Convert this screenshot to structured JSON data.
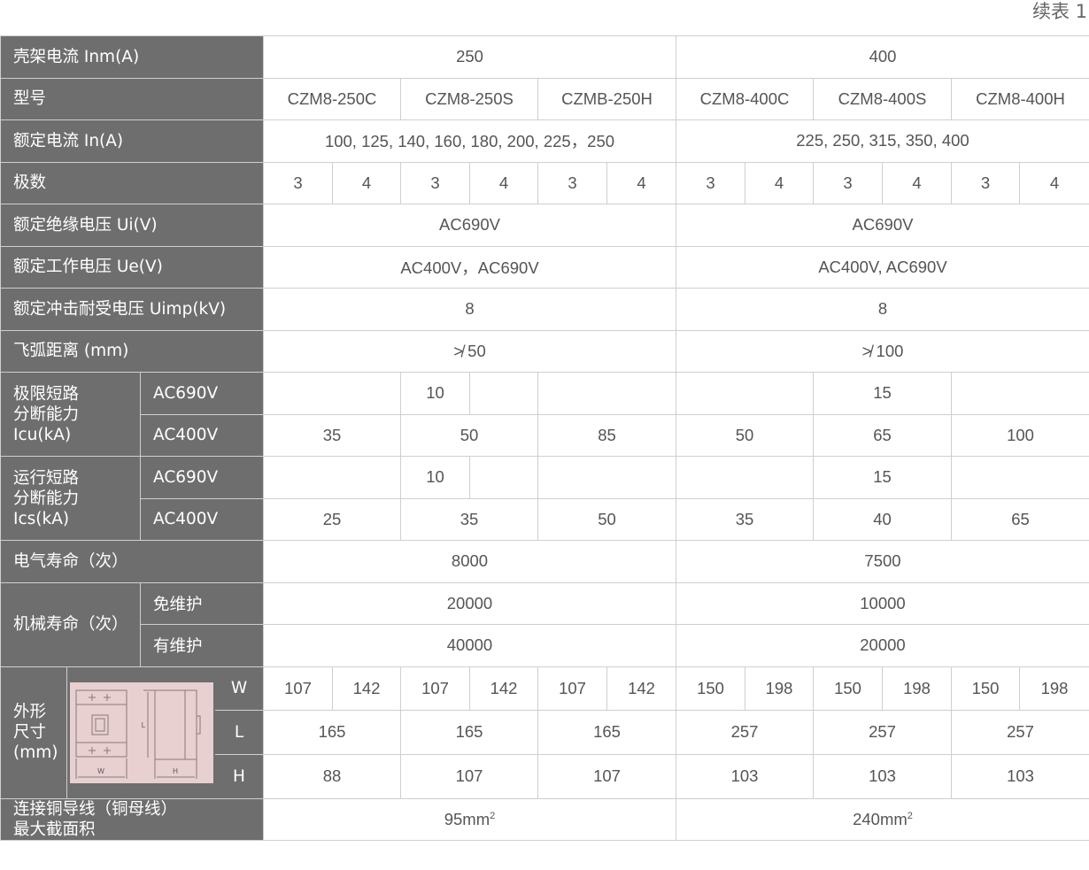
{
  "title": "续表 1",
  "colors": {
    "label_bg": "#6e6e6e",
    "label_text": "#ffffff",
    "border": "#cfcfcf",
    "value_text": "#555555",
    "drawing_bg": "#e8cfd0"
  },
  "frame_current": {
    "label": "壳架电流 Inm(A)",
    "values": [
      "250",
      "400"
    ]
  },
  "model": {
    "label": "型号",
    "values": [
      "CZM8-250C",
      "CZM8-250S",
      "CZMB-250H",
      "CZM8-400C",
      "CZM8-400S",
      "CZM8-400H"
    ]
  },
  "rated_current": {
    "label": "额定电流 In(A)",
    "values": [
      "100, 125, 140, 160, 180, 200, 225，250",
      "225, 250, 315, 350, 400"
    ]
  },
  "poles": {
    "label": "极数",
    "values": [
      "3",
      "4",
      "3",
      "4",
      "3",
      "4",
      "3",
      "4",
      "3",
      "4",
      "3",
      "4"
    ]
  },
  "ui": {
    "label": "额定绝缘电压 Ui(V)",
    "values": [
      "AC690V",
      "AC690V"
    ]
  },
  "ue": {
    "label": "额定工作电压 Ue(V)",
    "values": [
      "AC400V，AC690V",
      "AC400V, AC690V"
    ]
  },
  "uimp": {
    "label": "额定冲击耐受电压 Uimp(kV)",
    "values": [
      "8",
      "8"
    ]
  },
  "arc": {
    "label": "飞弧距离 (mm)",
    "values": [
      "≯ 50",
      "≯ 100"
    ]
  },
  "icu": {
    "label_lines": [
      "极限短路",
      "分断能力",
      "Icu(kA)"
    ],
    "ac690": {
      "label": "AC690V",
      "values": [
        "10",
        "15"
      ]
    },
    "ac400": {
      "label": "AC400V",
      "values": [
        "35",
        "50",
        "85",
        "50",
        "65",
        "100"
      ]
    }
  },
  "ics": {
    "label_lines": [
      "运行短路",
      "分断能力",
      "Ics(kA)"
    ],
    "ac690": {
      "label": "AC690V",
      "values": [
        "10",
        "15"
      ]
    },
    "ac400": {
      "label": "AC400V",
      "values": [
        "25",
        "35",
        "50",
        "35",
        "40",
        "65"
      ]
    }
  },
  "elec_life": {
    "label": "电气寿命（次）",
    "values": [
      "8000",
      "7500"
    ]
  },
  "mech_life": {
    "label": "机械寿命（次）",
    "free": {
      "label": "免维护",
      "values": [
        "20000",
        "10000"
      ]
    },
    "maint": {
      "label": "有维护",
      "values": [
        "40000",
        "20000"
      ]
    }
  },
  "dims": {
    "label_lines": [
      "外形",
      "尺寸",
      "(mm)"
    ],
    "drawing_labels": {
      "w": "W",
      "h": "H",
      "l": "L"
    },
    "w": {
      "label": "W",
      "values": [
        "107",
        "142",
        "107",
        "142",
        "107",
        "142",
        "150",
        "198",
        "150",
        "198",
        "150",
        "198"
      ]
    },
    "l": {
      "label": "L",
      "values": [
        "165",
        "165",
        "165",
        "257",
        "257",
        "257"
      ]
    },
    "h": {
      "label": "H",
      "values": [
        "88",
        "107",
        "107",
        "103",
        "103",
        "103"
      ]
    }
  },
  "conductor": {
    "label_lines": [
      "连接铜导线（铜母线）",
      "最大截面积"
    ],
    "values": [
      "95mm",
      "240mm"
    ],
    "sup": "2"
  }
}
